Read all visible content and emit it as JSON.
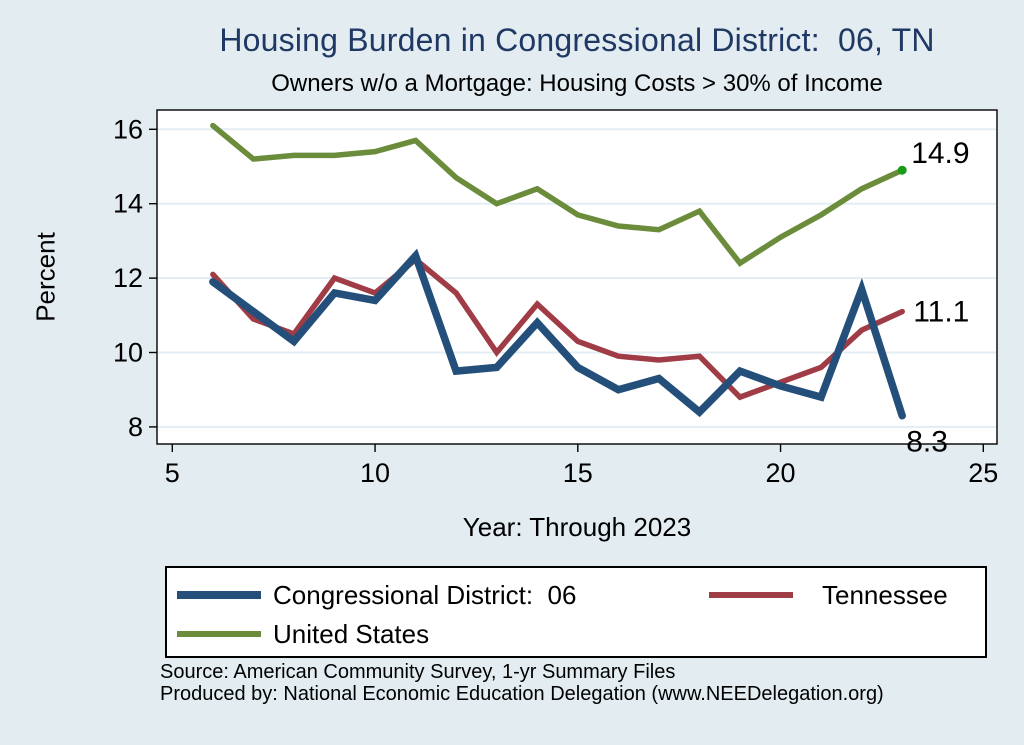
{
  "page": {
    "background_color": "#e3edf1",
    "source_line1": "Source: American Community Survey, 1-yr Summary Files",
    "source_line2": "Produced by: National Economic Education Delegation (www.NEEDelegation.org)"
  },
  "chart_data": {
    "type": "line",
    "title": "Housing Burden in Congressional District:  06, TN",
    "subtitle": "Owners w/o a Mortgage: Housing Costs > 30% of Income",
    "xlabel": "Year: Through 2023",
    "ylabel": "Percent",
    "x_ticks": [
      5,
      10,
      15,
      20,
      25
    ],
    "y_ticks": [
      16,
      14,
      12,
      10,
      8
    ],
    "xlim": [
      4.6,
      25.3
    ],
    "ylim": [
      7.5,
      16.5
    ],
    "grid": "horizontal",
    "legend_position": "bottom-box",
    "x": [
      6,
      7,
      8,
      9,
      10,
      11,
      12,
      13,
      14,
      15,
      16,
      17,
      18,
      19,
      20,
      21,
      22,
      23
    ],
    "series": [
      {
        "name": "Congressional District:  06",
        "color": "#234f7a",
        "end_label": "8.3",
        "values": [
          11.9,
          11.1,
          10.3,
          11.6,
          11.4,
          12.6,
          9.5,
          9.6,
          10.8,
          9.6,
          9.0,
          9.3,
          8.4,
          9.5,
          9.1,
          8.8,
          11.7,
          8.3
        ]
      },
      {
        "name": "Tennessee",
        "color": "#a03c46",
        "end_label": "11.1",
        "values": [
          12.1,
          10.9,
          10.5,
          12.0,
          11.6,
          12.5,
          11.6,
          10.0,
          11.3,
          10.3,
          9.9,
          9.8,
          9.9,
          8.8,
          9.2,
          9.6,
          10.6,
          11.1
        ]
      },
      {
        "name": "United States",
        "color": "#6b8c3b",
        "end_label": "14.9",
        "end_marker_color": "#189c18",
        "values": [
          16.1,
          15.2,
          15.3,
          15.3,
          15.4,
          15.7,
          14.7,
          14.0,
          14.4,
          13.7,
          13.4,
          13.3,
          13.8,
          12.4,
          13.1,
          13.7,
          14.4,
          14.9
        ]
      }
    ]
  }
}
